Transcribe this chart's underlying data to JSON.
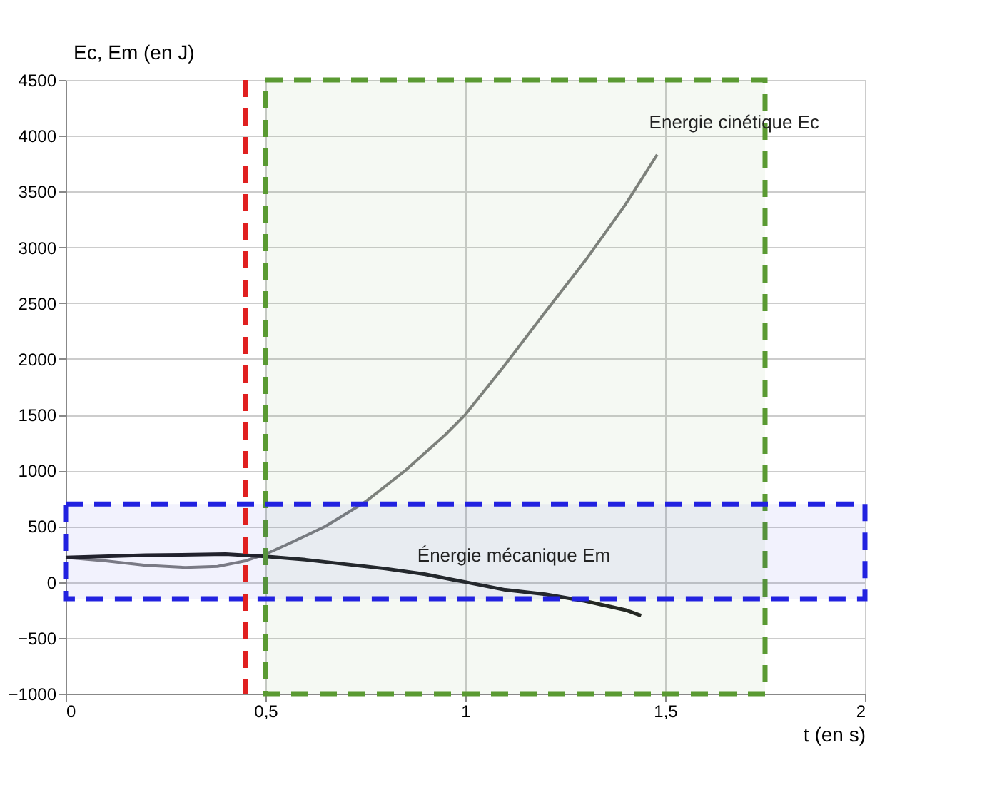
{
  "chart_data": {
    "type": "line",
    "ylabel": "Ec, Em (en J)",
    "xlabel": "t (en s)",
    "xlim": [
      0,
      2
    ],
    "xticks": [
      0,
      {
        "value": 0.5,
        "label": "0,5"
      },
      1,
      {
        "value": 1.5,
        "label": "1,5"
      },
      2
    ],
    "ylim": [
      -1000,
      4500
    ],
    "yticks": [
      -1000,
      -500,
      0,
      500,
      1000,
      1500,
      2000,
      2500,
      3000,
      3500,
      4000,
      4500
    ],
    "grid": true,
    "marker": "none",
    "line_style": "solid",
    "series": [
      {
        "color": "#808080",
        "x": [
          0,
          0.1,
          0.2,
          0.3,
          0.38,
          0.45,
          0.5,
          0.55,
          0.65,
          0.75,
          0.85,
          0.95,
          1.0,
          1.1,
          1.2,
          1.3,
          1.4,
          1.48
        ],
        "values": [
          220,
          190,
          150,
          130,
          140,
          190,
          250,
          330,
          500,
          720,
          1000,
          1320,
          1500,
          1950,
          2420,
          2880,
          3380,
          3830
        ]
      },
      {
        "color": "#222222",
        "x": [
          0,
          0.2,
          0.4,
          0.5,
          0.6,
          0.7,
          0.8,
          0.9,
          0.97,
          1.0,
          1.1,
          1.2,
          1.3,
          1.4,
          1.44
        ],
        "values": [
          220,
          240,
          250,
          230,
          200,
          160,
          120,
          70,
          20,
          0,
          -70,
          -110,
          -170,
          -250,
          -300
        ]
      }
    ],
    "annotations": [
      "Energie cinétique Ec",
      "Énergie mécanique Em"
    ],
    "ref_lines": [
      {
        "axis": "x",
        "value": 0.45,
        "color": "#e02020",
        "line_style": "dashed"
      }
    ],
    "bands": [
      {
        "axis": "x",
        "from": 0.5,
        "to": 1.75,
        "color": "#5a9a32"
      },
      {
        "axis": "y",
        "from": -150,
        "to": 700,
        "color": "#2222e0"
      }
    ]
  }
}
